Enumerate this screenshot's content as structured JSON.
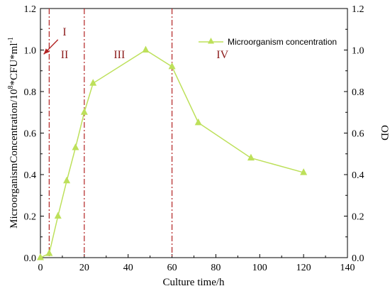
{
  "chart_data": {
    "type": "line",
    "xlabel": "Culture time/h",
    "ylabel_left": "MicroorganismConcentration/10",
    "ylabel_left_sup1": "8",
    "ylabel_left_mid": "*CFU*ml",
    "ylabel_left_sup2": "-1",
    "ylabel_right": "OD",
    "xlim": [
      0,
      140
    ],
    "ylim": [
      0,
      1.2
    ],
    "x_ticks": [
      "0",
      "20",
      "40",
      "60",
      "80",
      "100",
      "120",
      "140"
    ],
    "y_ticks_left": [
      "0.0",
      "0.2",
      "0.4",
      "0.6",
      "0.8",
      "1.0",
      "1.2"
    ],
    "y_ticks_right": [
      "0.0",
      "0.2",
      "0.4",
      "0.6",
      "0.8",
      "1.0",
      "1.2"
    ],
    "legend_position": "top-right",
    "series": [
      {
        "name": "Microorganism concentration",
        "color": "#bde05a",
        "x": [
          0,
          4,
          8,
          12,
          16,
          20,
          24,
          48,
          60,
          72,
          96,
          120
        ],
        "y": [
          0.0,
          0.02,
          0.2,
          0.37,
          0.53,
          0.7,
          0.84,
          1.0,
          0.92,
          0.65,
          0.48,
          0.41
        ]
      }
    ],
    "phase_lines": {
      "color": "#b22222",
      "x": [
        4,
        20,
        60
      ]
    },
    "annotations": [
      {
        "text": "I",
        "x": 11,
        "y": 1.07
      },
      {
        "text": "II",
        "x": 11,
        "y": 0.96
      },
      {
        "text": "III",
        "x": 36,
        "y": 0.96
      },
      {
        "text": "IV",
        "x": 83,
        "y": 0.96
      }
    ],
    "arrow": {
      "from": [
        8,
        1.05
      ],
      "to": [
        1.5,
        0.98
      ]
    }
  }
}
